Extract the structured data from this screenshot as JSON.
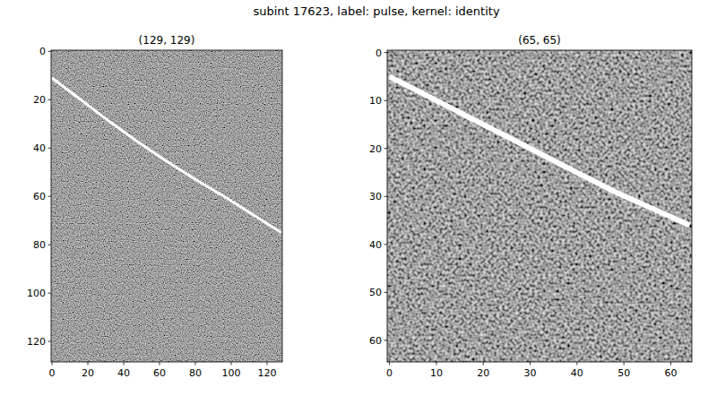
{
  "title": "subint 17623, label: pulse, kernel: identity",
  "chart_data": [
    {
      "type": "image",
      "title": "(129, 129)",
      "color": "#ffffff",
      "x": [
        0,
        16,
        32,
        48,
        64,
        80,
        96,
        112,
        128
      ],
      "values": [
        11,
        20,
        29,
        37.5,
        45.5,
        53,
        60,
        67.5,
        75
      ],
      "xlim": [
        -0.5,
        128.5
      ],
      "ylim": [
        -0.5,
        128.5
      ],
      "xticks": [
        0,
        20,
        40,
        60,
        80,
        100,
        120
      ],
      "yticks": [
        0,
        20,
        40,
        60,
        80,
        100,
        120
      ]
    },
    {
      "type": "image",
      "title": "(65, 65)",
      "color": "#ffffff",
      "x": [
        0,
        8,
        16,
        24,
        32,
        40,
        48,
        56,
        64
      ],
      "values": [
        5,
        9,
        13,
        17,
        21,
        25,
        29,
        32.5,
        36
      ],
      "xlim": [
        -0.5,
        64.5
      ],
      "ylim": [
        -0.5,
        64.5
      ],
      "xticks": [
        0,
        10,
        20,
        30,
        40,
        50,
        60
      ],
      "yticks": [
        0,
        10,
        20,
        30,
        40,
        50,
        60
      ]
    }
  ]
}
